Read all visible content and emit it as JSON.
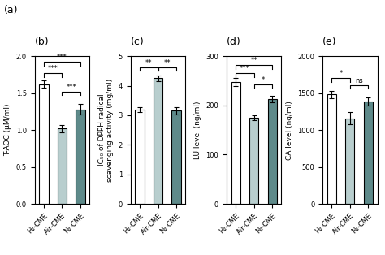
{
  "annotations": [
    "(a)"
  ],
  "chart_data": [
    {
      "type": "bar",
      "title": "(b)",
      "categories": [
        "H₂-CME",
        "Air-CME",
        "N₂-CME"
      ],
      "colors": [
        "#ffffff",
        "#b8cece",
        "#5e8a8a"
      ],
      "values": [
        1.62,
        1.02,
        1.28
      ],
      "errors": [
        0.05,
        0.05,
        0.07
      ],
      "ylabel": "T-AOC (μM/ml)",
      "ylim": [
        0,
        2.0
      ],
      "yticks": [
        0.0,
        0.5,
        1.0,
        1.5,
        2.0
      ],
      "annotations": [
        {
          "from": "H₂-CME",
          "to": "Air-CME",
          "y": 1.77,
          "label": "***"
        },
        {
          "from": "Air-CME",
          "to": "N₂-CME",
          "y": 1.52,
          "label": "***"
        },
        {
          "from": "H₂-CME",
          "to": "N₂-CME",
          "y": 1.92,
          "label": "***"
        }
      ]
    },
    {
      "type": "bar",
      "title": "(c)",
      "categories": [
        "H₂-CME",
        "Air-CME",
        "N₂-CME"
      ],
      "colors": [
        "#ffffff",
        "#b8cece",
        "#5e8a8a"
      ],
      "values": [
        3.2,
        4.25,
        3.15
      ],
      "errors": [
        0.08,
        0.1,
        0.13
      ],
      "ylabel": "IC₅₀ of DPPH radical\nscavenging activity (mg/ml)",
      "ylim": [
        0,
        5
      ],
      "yticks": [
        0,
        1,
        2,
        3,
        4,
        5
      ],
      "annotations": [
        {
          "from": "H₂-CME",
          "to": "Air-CME",
          "y": 4.62,
          "label": "**"
        },
        {
          "from": "Air-CME",
          "to": "N₂-CME",
          "y": 4.62,
          "label": "**"
        }
      ]
    },
    {
      "type": "bar",
      "title": "(d)",
      "categories": [
        "H₂-CME",
        "Air-CME",
        "N₂-CME"
      ],
      "colors": [
        "#ffffff",
        "#b8cece",
        "#5e8a8a"
      ],
      "values": [
        248,
        175,
        213
      ],
      "errors": [
        8,
        5,
        7
      ],
      "ylabel": "LU level (ng/ml)",
      "ylim": [
        0,
        300
      ],
      "yticks": [
        0,
        100,
        200,
        300
      ],
      "annotations": [
        {
          "from": "H₂-CME",
          "to": "Air-CME",
          "y": 265,
          "label": "***"
        },
        {
          "from": "Air-CME",
          "to": "N₂-CME",
          "y": 243,
          "label": "*"
        },
        {
          "from": "H₂-CME",
          "to": "N₂-CME",
          "y": 282,
          "label": "**"
        }
      ]
    },
    {
      "type": "bar",
      "title": "(e)",
      "categories": [
        "H₂-CME",
        "Air-CME",
        "N₂-CME"
      ],
      "colors": [
        "#ffffff",
        "#b8cece",
        "#5e8a8a"
      ],
      "values": [
        1480,
        1160,
        1390
      ],
      "errors": [
        45,
        85,
        55
      ],
      "ylabel": "CA level (ng/ml)",
      "ylim": [
        0,
        2000
      ],
      "yticks": [
        0,
        500,
        1000,
        1500,
        2000
      ],
      "annotations": [
        {
          "from": "H₂-CME",
          "to": "Air-CME",
          "y": 1700,
          "label": "*"
        },
        {
          "from": "Air-CME",
          "to": "N₂-CME",
          "y": 1610,
          "label": "ns"
        }
      ]
    }
  ]
}
